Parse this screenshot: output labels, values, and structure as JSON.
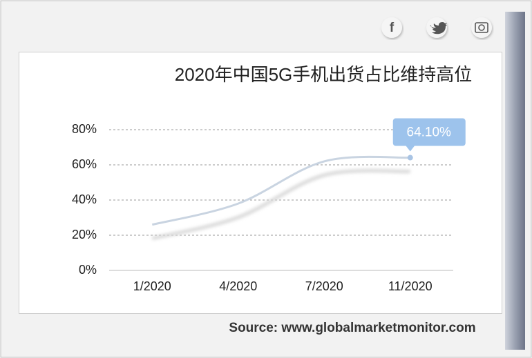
{
  "chart_data": {
    "type": "line",
    "title": "2020年中国5G手机出货占比维持高位",
    "categories": [
      "1/2020",
      "4/2020",
      "7/2020",
      "11/2020"
    ],
    "series": [
      {
        "name": "5G手机出货占比",
        "color": "#c9d4e1",
        "values": [
          26,
          38,
          62,
          64.1
        ],
        "value_labels": [
          null,
          null,
          null,
          "64.10%"
        ]
      }
    ],
    "ylim": [
      0,
      80
    ],
    "yticks": [
      {
        "value": 0,
        "label": "0%"
      },
      {
        "value": 20,
        "label": "20%"
      },
      {
        "value": 40,
        "label": "40%"
      },
      {
        "value": 60,
        "label": "60%"
      },
      {
        "value": 80,
        "label": "80%"
      }
    ],
    "grid": true,
    "source": "Source: www.globalmarketmonitor.com"
  }
}
